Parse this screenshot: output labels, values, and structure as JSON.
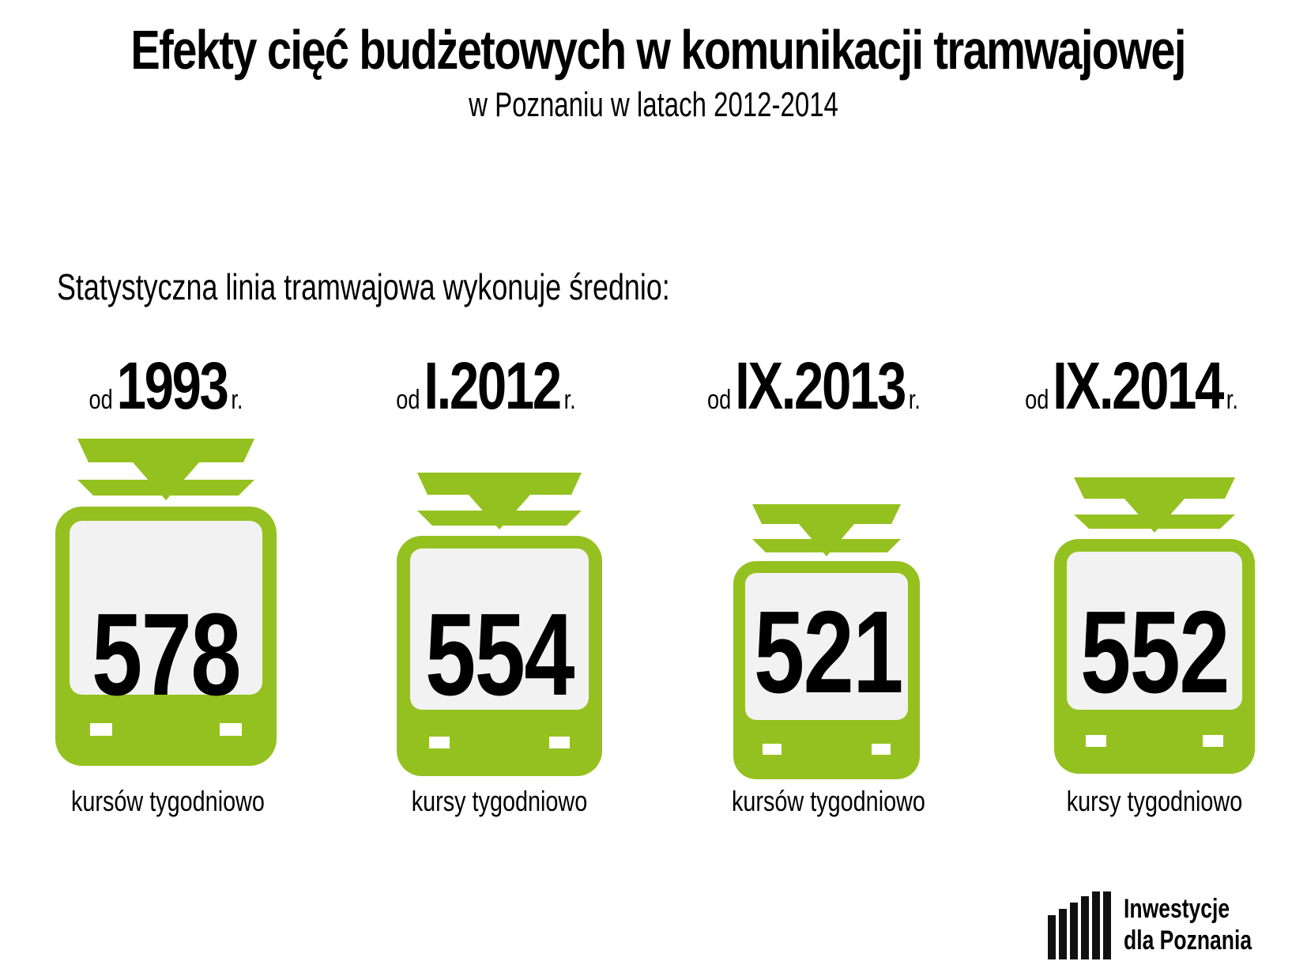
{
  "header": {
    "title": "Efekty cięć budżetowych w komunikacji tramwajowej",
    "subtitle": "w Poznaniu w latach 2012-2014"
  },
  "intro": "Statystyczna linia tramwajowa wykonuje średnio:",
  "periods": [
    {
      "prefix": "od",
      "date": "1993",
      "suffix": "r.",
      "count": "578",
      "unit": "kursów tygodniowo"
    },
    {
      "prefix": "od",
      "date": "I.2012",
      "suffix": "r.",
      "count": "554",
      "unit": "kursy tygodniowo"
    },
    {
      "prefix": "od",
      "date": "IX.2013",
      "suffix": "r.",
      "count": "521",
      "unit": "kursów tygodniowo"
    },
    {
      "prefix": "od",
      "date": "IX.2014",
      "suffix": "r.",
      "count": "552",
      "unit": "kursy tygodniowo"
    }
  ],
  "colors": {
    "tram_green": "#94c120",
    "window": "#f2f2f2"
  },
  "icons": [
    "tram-icon",
    "logo-bars-icon"
  ],
  "logo": {
    "line1": "Inwestycje",
    "line2": "dla Poznania"
  }
}
